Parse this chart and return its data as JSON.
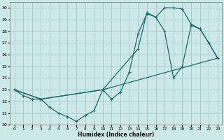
{
  "title": "",
  "xlabel": "Humidex (Indice chaleur)",
  "bg_color": "#cce8e8",
  "grid_color": "#aacccc",
  "line_color": "#1a6e6a",
  "xlim": [
    -0.5,
    23.5
  ],
  "ylim": [
    20,
    30.5
  ],
  "xticks": [
    0,
    1,
    2,
    3,
    4,
    5,
    6,
    7,
    8,
    9,
    10,
    11,
    12,
    13,
    14,
    15,
    16,
    17,
    18,
    19,
    20,
    21,
    22,
    23
  ],
  "yticks": [
    20,
    21,
    22,
    23,
    24,
    25,
    26,
    27,
    28,
    29,
    30
  ],
  "line1_x": [
    0,
    1,
    2,
    3,
    4,
    5,
    6,
    7,
    8,
    9,
    10,
    11,
    12,
    13,
    14,
    15,
    16,
    17,
    18,
    19,
    20,
    21,
    22,
    23
  ],
  "line1_y": [
    23.0,
    22.5,
    22.2,
    22.2,
    21.5,
    21.0,
    20.7,
    20.3,
    20.8,
    21.2,
    23.0,
    22.2,
    22.8,
    24.5,
    27.8,
    29.5,
    29.2,
    28.0,
    24.0,
    25.0,
    28.5,
    28.2,
    27.0,
    25.7
  ],
  "line2_x": [
    0,
    3,
    10,
    14,
    15,
    16,
    17,
    18,
    19,
    20,
    21,
    22,
    23
  ],
  "line2_y": [
    23.0,
    22.2,
    23.0,
    26.5,
    29.6,
    29.2,
    30.0,
    30.0,
    29.9,
    28.6,
    28.2,
    27.0,
    25.7
  ],
  "line3_x": [
    0,
    3,
    10,
    23
  ],
  "line3_y": [
    23.0,
    22.2,
    23.0,
    25.7
  ]
}
